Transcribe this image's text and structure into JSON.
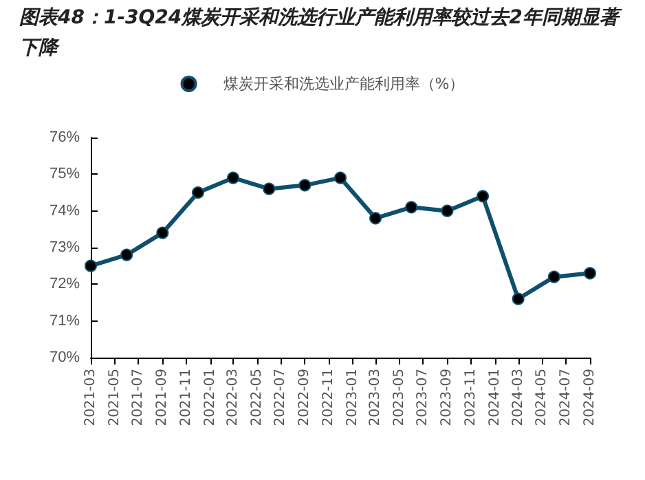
{
  "chart_data": {
    "type": "line",
    "title": "图表48：1-3Q24煤炭开采和洗选行业产能利用率较过去2年同期显著下降",
    "x": [
      "2021-03",
      "2021-06",
      "2021-09",
      "2021-12",
      "2022-03",
      "2022-06",
      "2022-09",
      "2022-12",
      "2023-03",
      "2023-06",
      "2023-09",
      "2023-12",
      "2024-03",
      "2024-06",
      "2024-09"
    ],
    "series": [
      {
        "name": "煤炭开采和洗选业产能利用率（%）",
        "color": "#0e4f6e",
        "values": [
          72.5,
          72.8,
          73.4,
          74.5,
          74.9,
          74.6,
          74.7,
          74.9,
          73.8,
          74.1,
          74.0,
          74.4,
          71.6,
          72.2,
          72.3
        ]
      }
    ],
    "xlim": [
      "2021-03",
      "2024-09"
    ],
    "xticks": [
      "2021-03",
      "2021-05",
      "2021-07",
      "2021-09",
      "2021-11",
      "2022-01",
      "2022-03",
      "2022-05",
      "2022-07",
      "2022-09",
      "2022-11",
      "2023-01",
      "2023-03",
      "2023-05",
      "2023-07",
      "2023-09",
      "2023-11",
      "2024-01",
      "2024-03",
      "2024-05",
      "2024-07",
      "2024-09"
    ],
    "ylim": [
      70,
      76
    ],
    "yticks": [
      {
        "value": 70,
        "label": "70%"
      },
      {
        "value": 71,
        "label": "71%"
      },
      {
        "value": 72,
        "label": "72%"
      },
      {
        "value": 73,
        "label": "73%"
      },
      {
        "value": 74,
        "label": "74%"
      },
      {
        "value": 75,
        "label": "75%"
      },
      {
        "value": 76,
        "label": "76%"
      }
    ],
    "grid": false,
    "legend": "top",
    "marker": "circle",
    "line_style": "solid"
  }
}
